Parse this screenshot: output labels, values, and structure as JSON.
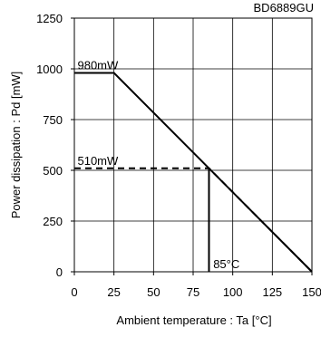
{
  "chart_data": {
    "type": "line",
    "title": "BD6889GU",
    "xlabel": "Ambient temperature : Ta [°C]",
    "ylabel": "Power dissipation : Pd [mW]",
    "xlim": [
      0,
      150
    ],
    "ylim": [
      0,
      1250
    ],
    "x_ticks": [
      0,
      25,
      50,
      75,
      100,
      125,
      150
    ],
    "y_ticks": [
      0,
      250,
      500,
      750,
      1000,
      1250
    ],
    "x_tick_labels": [
      "0",
      "25",
      "50",
      "75",
      "100",
      "125",
      "150"
    ],
    "y_tick_labels": [
      "0",
      "250",
      "500",
      "750",
      "1000",
      "1250"
    ],
    "grid": true,
    "series": [
      {
        "style": "solid",
        "points": [
          [
            0,
            980
          ],
          [
            25,
            980
          ],
          [
            150,
            0
          ]
        ]
      },
      {
        "style": "dashed",
        "points": [
          [
            0,
            510
          ],
          [
            85,
            510
          ],
          [
            150,
            0
          ]
        ]
      }
    ],
    "vertical_lines": [
      {
        "x": 85,
        "y0": 0,
        "y1": 510,
        "style": "solid"
      }
    ],
    "annotations": [
      {
        "text": "980mW",
        "x": 2,
        "y": 980
      },
      {
        "text": "510mW",
        "x": 2,
        "y": 510
      },
      {
        "text": "85°C",
        "x": 86,
        "y": 0
      }
    ],
    "colors": {
      "line": "#000000",
      "grid": "#000000",
      "background": "#ffffff"
    }
  }
}
